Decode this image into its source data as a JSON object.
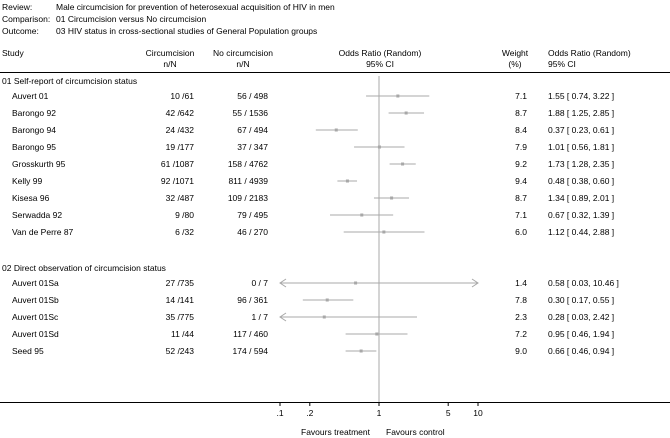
{
  "header": {
    "review_label": "Review:",
    "review_value": "Male circumcision for prevention of heterosexual acquisition of HIV in men",
    "comparison_label": "Comparison:",
    "comparison_value": "01 Circumcision versus No circumcision",
    "outcome_label": "Outcome:",
    "outcome_value": "03 HIV status in cross-sectional studies of General Population groups"
  },
  "columns": {
    "study": "Study",
    "exp_1": "Circumcision",
    "exp_2": "n/N",
    "ctl_1": "No circumcision",
    "ctl_2": "n/N",
    "or_1": "Odds Ratio (Random)",
    "or_2": "95% CI",
    "weight_1": "Weight",
    "weight_2": "(%)",
    "orv_1": "Odds Ratio (Random)",
    "orv_2": "95% CI"
  },
  "groups": [
    {
      "title": "01 Self-report of circumcision status",
      "studies": [
        {
          "name": "Auvert 01",
          "exp": "10 /61",
          "ctl": "56 / 498",
          "weight": "7.1",
          "ci_text": "1.55 [ 0.74, 3.22 ]"
        },
        {
          "name": "Barongo 92",
          "exp": "42 /642",
          "ctl": "55 / 1536",
          "weight": "8.7",
          "ci_text": "1.88 [ 1.25, 2.85 ]"
        },
        {
          "name": "Barongo 94",
          "exp": "24 /432",
          "ctl": "67 / 494",
          "weight": "8.4",
          "ci_text": "0.37 [ 0.23, 0.61 ]"
        },
        {
          "name": "Barongo 95",
          "exp": "19 /177",
          "ctl": "37 / 347",
          "weight": "7.9",
          "ci_text": "1.01 [ 0.56, 1.81 ]"
        },
        {
          "name": "Grosskurth 95",
          "exp": "61 /1087",
          "ctl": "158 / 4762",
          "weight": "9.2",
          "ci_text": "1.73 [ 1.28, 2.35 ]"
        },
        {
          "name": "Kelly 99",
          "exp": "92 /1071",
          "ctl": "811 / 4939",
          "weight": "9.4",
          "ci_text": "0.48 [ 0.38, 0.60 ]"
        },
        {
          "name": "Kisesa 96",
          "exp": "32 /487",
          "ctl": "109 / 2183",
          "weight": "8.7",
          "ci_text": "1.34 [ 0.89, 2.01 ]"
        },
        {
          "name": "Serwadda 92",
          "exp": "9 /80",
          "ctl": "79 / 495",
          "weight": "7.1",
          "ci_text": "0.67 [ 0.32, 1.39 ]"
        },
        {
          "name": "Van de Perre 87",
          "exp": "6 /32",
          "ctl": "46 / 270",
          "weight": "6.0",
          "ci_text": "1.12 [ 0.44, 2.88 ]"
        }
      ]
    },
    {
      "title": "02 Direct observation of circumcision status",
      "studies": [
        {
          "name": "Auvert 01Sa",
          "exp": "27 /735",
          "ctl": "0 / 7",
          "weight": "1.4",
          "ci_text": "0.58 [ 0.03, 10.46 ]"
        },
        {
          "name": "Auvert 01Sb",
          "exp": "14 /141",
          "ctl": "96 / 361",
          "weight": "7.8",
          "ci_text": "0.30 [ 0.17, 0.55 ]"
        },
        {
          "name": "Auvert 01Sc",
          "exp": "35 /775",
          "ctl": "1 / 7",
          "weight": "2.3",
          "ci_text": "0.28 [ 0.03, 2.42 ]"
        },
        {
          "name": "Auvert 01Sd",
          "exp": "11 /44",
          "ctl": "117 / 460",
          "weight": "7.2",
          "ci_text": "0.95 [ 0.46, 1.94 ]"
        },
        {
          "name": "Seed 95",
          "exp": "52 /243",
          "ctl": "174 / 594",
          "weight": "9.0",
          "ci_text": "0.66 [ 0.46, 0.94 ]"
        }
      ]
    }
  ],
  "chart_data": {
    "type": "forest",
    "scale": "log",
    "xlim": [
      0.1,
      10
    ],
    "ticks": [
      {
        "value": 0.1,
        "label": ".1"
      },
      {
        "value": 0.2,
        "label": ".2"
      },
      {
        "value": 1,
        "label": "1"
      },
      {
        "value": 5,
        "label": "5"
      },
      {
        "value": 10,
        "label": "10"
      }
    ],
    "reference_line": 1,
    "left_label": "Favours treatment",
    "right_label": "Favours control",
    "points": [
      {
        "study": "Auvert 01",
        "or": 1.55,
        "lo": 0.74,
        "hi": 3.22
      },
      {
        "study": "Barongo 92",
        "or": 1.88,
        "lo": 1.25,
        "hi": 2.85
      },
      {
        "study": "Barongo 94",
        "or": 0.37,
        "lo": 0.23,
        "hi": 0.61
      },
      {
        "study": "Barongo 95",
        "or": 1.01,
        "lo": 0.56,
        "hi": 1.81
      },
      {
        "study": "Grosskurth 95",
        "or": 1.73,
        "lo": 1.28,
        "hi": 2.35
      },
      {
        "study": "Kelly 99",
        "or": 0.48,
        "lo": 0.38,
        "hi": 0.6
      },
      {
        "study": "Kisesa 96",
        "or": 1.34,
        "lo": 0.89,
        "hi": 2.01
      },
      {
        "study": "Serwadda 92",
        "or": 0.67,
        "lo": 0.32,
        "hi": 1.39
      },
      {
        "study": "Van de Perre 87",
        "or": 1.12,
        "lo": 0.44,
        "hi": 2.88
      },
      {
        "study": "Auvert 01Sa",
        "or": 0.58,
        "lo": 0.03,
        "hi": 10.46
      },
      {
        "study": "Auvert 01Sb",
        "or": 0.3,
        "lo": 0.17,
        "hi": 0.55
      },
      {
        "study": "Auvert 01Sc",
        "or": 0.28,
        "lo": 0.03,
        "hi": 2.42
      },
      {
        "study": "Auvert 01Sd",
        "or": 0.95,
        "lo": 0.46,
        "hi": 1.94
      },
      {
        "study": "Seed 95",
        "or": 0.66,
        "lo": 0.46,
        "hi": 0.94
      }
    ]
  }
}
